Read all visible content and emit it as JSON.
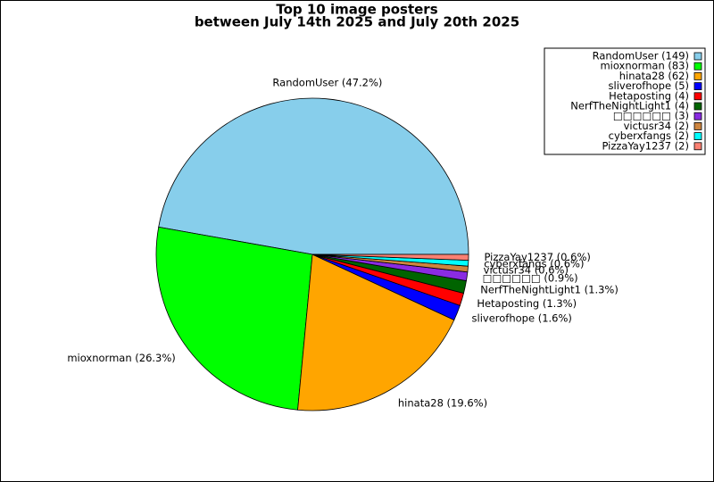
{
  "chart_data": {
    "type": "pie",
    "title": "Top 10 image posters",
    "subtitle": "between July 14th 2025 and July 20th 2025",
    "categories": [
      "RandomUser (149)",
      "mioxnorman (83)",
      "hinata28 (62)",
      "sliverofhope (5)",
      "Hetaposting (4)",
      "NerfTheNightLight1 (4)",
      "□□□□□□ (3)",
      "victusr34 (2)",
      "cyberxfangs (2)",
      "PizzaYay1237 (2)"
    ],
    "values": [
      47.2,
      26.3,
      19.6,
      1.6,
      1.3,
      1.3,
      0.9,
      0.6,
      0.6,
      0.6
    ],
    "value_labels": [
      "RandomUser (47.2%)",
      "mioxnorman (26.3%)",
      "hinata28 (19.6%)",
      "sliverofhope (1.6%)",
      "Hetaposting (1.3%)",
      "NerfTheNightLight1 (1.3%)",
      "□□□□□□ (0.9%)",
      "victusr34 (0.6%)",
      "cyberxfangs (0.6%)",
      "PizzaYay1237 (0.6%)"
    ],
    "colors": [
      "#87ceeb",
      "#00ff00",
      "#ffa500",
      "#0000ff",
      "#ff0000",
      "#006400",
      "#8a2be2",
      "#cd853f",
      "#00ffff",
      "#fa8072"
    ],
    "legend": "upper right"
  }
}
